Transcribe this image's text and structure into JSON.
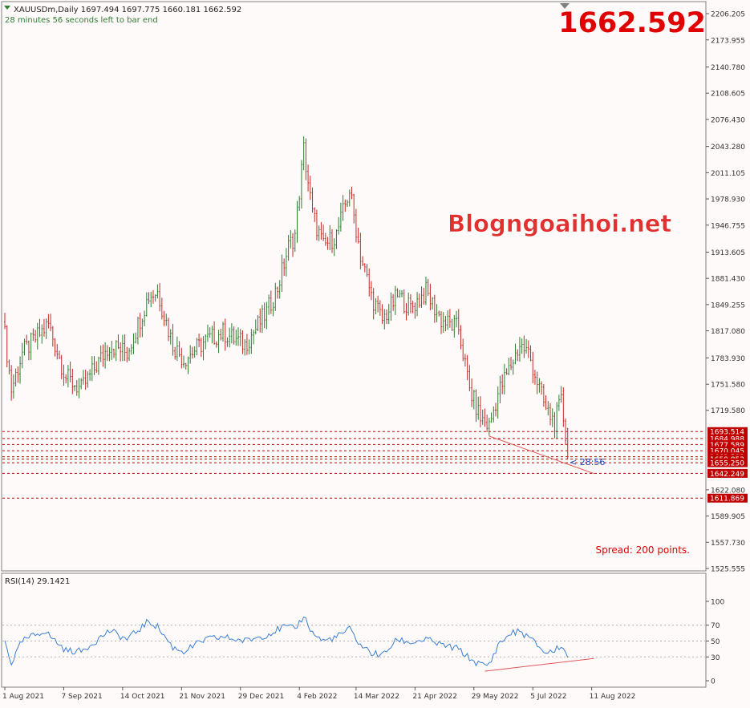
{
  "header": {
    "symbol_line": "XAUUSDm,Daily  1697.494 1697.775 1660.181 1662.592",
    "countdown_line": "28 minutes 56 seconds left to bar end",
    "big_price": "1662.592",
    "watermark": "Blogngoaihoi.net",
    "spread": "Spread: 200 points.",
    "timer_label": "< 28:56",
    "rsi_label": "RSI(14) 29.1421"
  },
  "colors": {
    "background": "#fffafa",
    "bull": "#2e7d32",
    "bear": "#c62828",
    "rsi_line": "#3a7fd5",
    "level_line": "#c00000",
    "trendline": "#e05a5a",
    "big_price": "#e00000"
  },
  "chart_data": [
    {
      "type": "candlestick",
      "symbol": "XAUUSDm",
      "timeframe": "Daily",
      "ylim": [
        1525.555,
        2206.205
      ],
      "price_ticks": [
        "2206.205",
        "2173.955",
        "2140.780",
        "2108.605",
        "2076.430",
        "2043.280",
        "2011.105",
        "1978.930",
        "1946.755",
        "1913.605",
        "1881.430",
        "1849.255",
        "1817.080",
        "1783.930",
        "1751.580",
        "1719.580",
        "1622.080",
        "1589.905",
        "1557.730",
        "1525.555"
      ],
      "x_ticks": [
        "1 Aug 2021",
        "7 Sep 2021",
        "14 Oct 2021",
        "21 Nov 2021",
        "29 Dec 2021",
        "4 Feb 2022",
        "14 Mar 2022",
        "21 Apr 2022",
        "29 May 2022",
        "5 Jul 2022",
        "11 Aug 2022"
      ],
      "price_anchors": [
        {
          "bar": 0,
          "close": 1812
        },
        {
          "bar": 3,
          "close": 1745
        },
        {
          "bar": 8,
          "close": 1790
        },
        {
          "bar": 20,
          "close": 1825
        },
        {
          "bar": 28,
          "close": 1760
        },
        {
          "bar": 35,
          "close": 1745
        },
        {
          "bar": 48,
          "close": 1800
        },
        {
          "bar": 56,
          "close": 1790
        },
        {
          "bar": 66,
          "close": 1860
        },
        {
          "bar": 70,
          "close": 1865
        },
        {
          "bar": 77,
          "close": 1800
        },
        {
          "bar": 82,
          "close": 1782
        },
        {
          "bar": 92,
          "close": 1805
        },
        {
          "bar": 100,
          "close": 1815
        },
        {
          "bar": 110,
          "close": 1800
        },
        {
          "bar": 120,
          "close": 1840
        },
        {
          "bar": 125,
          "close": 1870
        },
        {
          "bar": 130,
          "close": 1920
        },
        {
          "bar": 133,
          "close": 1935
        },
        {
          "bar": 137,
          "close": 2040
        },
        {
          "bar": 141,
          "close": 1960
        },
        {
          "bar": 146,
          "close": 1920
        },
        {
          "bar": 152,
          "close": 1935
        },
        {
          "bar": 158,
          "close": 1990
        },
        {
          "bar": 163,
          "close": 1910
        },
        {
          "bar": 168,
          "close": 1860
        },
        {
          "bar": 173,
          "close": 1830
        },
        {
          "bar": 180,
          "close": 1860
        },
        {
          "bar": 186,
          "close": 1845
        },
        {
          "bar": 193,
          "close": 1865
        },
        {
          "bar": 200,
          "close": 1830
        },
        {
          "bar": 208,
          "close": 1820
        },
        {
          "bar": 213,
          "close": 1745
        },
        {
          "bar": 218,
          "close": 1710
        },
        {
          "bar": 222,
          "close": 1700
        },
        {
          "bar": 226,
          "close": 1740
        },
        {
          "bar": 232,
          "close": 1775
        },
        {
          "bar": 236,
          "close": 1800
        },
        {
          "bar": 240,
          "close": 1790
        },
        {
          "bar": 244,
          "close": 1755
        },
        {
          "bar": 248,
          "close": 1720
        },
        {
          "bar": 252,
          "close": 1705
        },
        {
          "bar": 255,
          "close": 1730
        },
        {
          "bar": 257,
          "close": 1690
        },
        {
          "bar": 258,
          "close": 1662.592
        }
      ],
      "last_bar": {
        "open": 1697.494,
        "high": 1697.775,
        "low": 1660.181,
        "close": 1662.592
      },
      "levels": [
        {
          "value": 1693.514,
          "label": "1693.514"
        },
        {
          "value": 1684.988,
          "label": "1684.988"
        },
        {
          "value": 1677.589,
          "label": "1677.589"
        },
        {
          "value": 1670.045,
          "label": "1670.045"
        },
        {
          "value": 1662.592,
          "label": "1662.592"
        },
        {
          "value": 1659.853,
          "label": "1659.853"
        },
        {
          "value": 1655.25,
          "label": "1655.250"
        },
        {
          "value": 1642.249,
          "label": "1642.249"
        },
        {
          "value": 1611.869,
          "label": "1611.869"
        }
      ],
      "trendline": {
        "from": {
          "bar": 222,
          "value": 1688
        },
        "to": {
          "bar": 270,
          "value": 1642
        }
      }
    },
    {
      "type": "line",
      "name": "RSI(14)",
      "ylim": [
        0,
        100
      ],
      "y_ticks": [
        100,
        70,
        50,
        30,
        0
      ],
      "value_last": 29.1421,
      "rsi_anchors": [
        {
          "bar": 0,
          "value": 50
        },
        {
          "bar": 3,
          "value": 22
        },
        {
          "bar": 8,
          "value": 50
        },
        {
          "bar": 18,
          "value": 63
        },
        {
          "bar": 28,
          "value": 38
        },
        {
          "bar": 35,
          "value": 37
        },
        {
          "bar": 48,
          "value": 63
        },
        {
          "bar": 56,
          "value": 52
        },
        {
          "bar": 66,
          "value": 75
        },
        {
          "bar": 70,
          "value": 68
        },
        {
          "bar": 77,
          "value": 42
        },
        {
          "bar": 82,
          "value": 37
        },
        {
          "bar": 92,
          "value": 52
        },
        {
          "bar": 100,
          "value": 55
        },
        {
          "bar": 110,
          "value": 50
        },
        {
          "bar": 120,
          "value": 58
        },
        {
          "bar": 128,
          "value": 68
        },
        {
          "bar": 133,
          "value": 65
        },
        {
          "bar": 137,
          "value": 82
        },
        {
          "bar": 141,
          "value": 60
        },
        {
          "bar": 146,
          "value": 50
        },
        {
          "bar": 152,
          "value": 55
        },
        {
          "bar": 158,
          "value": 65
        },
        {
          "bar": 163,
          "value": 45
        },
        {
          "bar": 168,
          "value": 35
        },
        {
          "bar": 173,
          "value": 32
        },
        {
          "bar": 180,
          "value": 52
        },
        {
          "bar": 186,
          "value": 48
        },
        {
          "bar": 193,
          "value": 52
        },
        {
          "bar": 200,
          "value": 45
        },
        {
          "bar": 208,
          "value": 40
        },
        {
          "bar": 213,
          "value": 28
        },
        {
          "bar": 218,
          "value": 20
        },
        {
          "bar": 222,
          "value": 20
        },
        {
          "bar": 226,
          "value": 45
        },
        {
          "bar": 232,
          "value": 60
        },
        {
          "bar": 236,
          "value": 62
        },
        {
          "bar": 240,
          "value": 55
        },
        {
          "bar": 244,
          "value": 45
        },
        {
          "bar": 248,
          "value": 35
        },
        {
          "bar": 252,
          "value": 38
        },
        {
          "bar": 255,
          "value": 45
        },
        {
          "bar": 257,
          "value": 35
        },
        {
          "bar": 258,
          "value": 29.1421
        }
      ],
      "trendline": {
        "from": {
          "bar": 220,
          "value": 12
        },
        "to": {
          "bar": 270,
          "value": 28
        }
      }
    }
  ]
}
